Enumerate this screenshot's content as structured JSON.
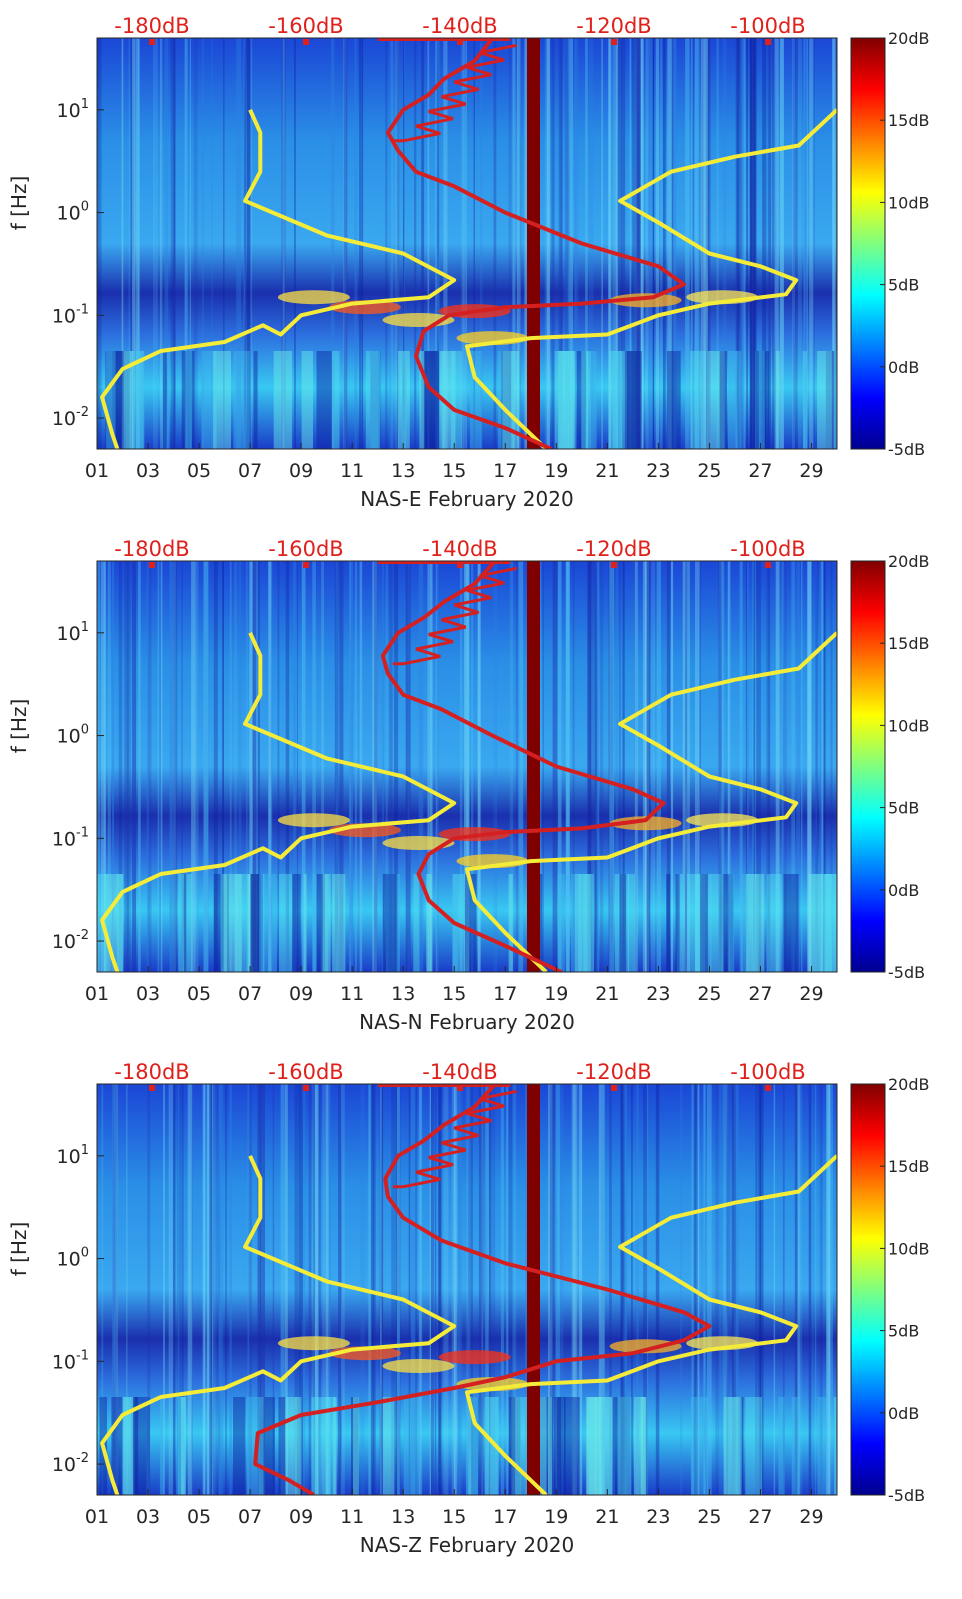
{
  "colors": {
    "accent_red": "#e0201b",
    "yellow_line": "#f5ec3a",
    "red_line": "#d42020",
    "bar": "#7f0000",
    "text": "#262626"
  },
  "chart_data": [
    {
      "type": "heatmap",
      "title": "",
      "xlabel": "NAS-E February 2020",
      "ylabel": "f [Hz]",
      "x_ticks": [
        "01",
        "03",
        "05",
        "07",
        "09",
        "11",
        "13",
        "15",
        "17",
        "19",
        "21",
        "23",
        "25",
        "27",
        "29"
      ],
      "y_ticks": [
        {
          "value": 0.01,
          "base": "10",
          "exp": "-2"
        },
        {
          "value": 0.1,
          "base": "10",
          "exp": "-1"
        },
        {
          "value": 1,
          "base": "10",
          "exp": "0"
        },
        {
          "value": 10,
          "base": "10",
          "exp": "1"
        }
      ],
      "top_axis_labels": [
        "-180dB",
        "-160dB",
        "-140dB",
        "-120dB",
        "-100dB"
      ],
      "colorbar": {
        "labels": [
          "20dB",
          "15dB",
          "10dB",
          "5dB",
          "0dB",
          "-5dB"
        ],
        "range_db": [
          -5,
          20
        ]
      },
      "xlim_days": [
        1,
        30
      ],
      "ylim_hz": [
        0.005,
        50
      ],
      "series": [
        {
          "name": "yellow-noise-model",
          "points": [
            [
              7.0,
              10
            ],
            [
              7.4,
              6
            ],
            [
              7.4,
              2.5
            ],
            [
              6.8,
              1.3
            ],
            [
              10,
              0.6
            ],
            [
              13,
              0.4
            ],
            [
              15,
              0.22
            ],
            [
              14,
              0.15
            ],
            [
              11,
              0.13
            ],
            [
              9,
              0.1
            ],
            [
              8.2,
              0.065
            ],
            [
              7.5,
              0.08
            ],
            [
              6,
              0.055
            ],
            [
              3.5,
              0.045
            ],
            [
              2,
              0.03
            ],
            [
              1.2,
              0.016
            ],
            [
              1.6,
              0.007
            ],
            [
              1.8,
              0.005
            ]
          ]
        },
        {
          "name": "yellow-noise-model-2",
          "points": [
            [
              18.6,
              0.005
            ],
            [
              17,
              0.012
            ],
            [
              15.8,
              0.025
            ],
            [
              15.5,
              0.05
            ],
            [
              18,
              0.06
            ],
            [
              21,
              0.065
            ],
            [
              23,
              0.1
            ],
            [
              25,
              0.13
            ],
            [
              28,
              0.16
            ],
            [
              28.4,
              0.22
            ],
            [
              27,
              0.3
            ],
            [
              25,
              0.4
            ],
            [
              23,
              0.8
            ],
            [
              21.5,
              1.3
            ],
            [
              23.5,
              2.5
            ],
            [
              26,
              3.5
            ],
            [
              28.5,
              4.5
            ],
            [
              30,
              10
            ]
          ]
        },
        {
          "name": "red-noise-psd",
          "points": [
            [
              18.8,
              0.005
            ],
            [
              17,
              0.008
            ],
            [
              15,
              0.012
            ],
            [
              14,
              0.02
            ],
            [
              13.5,
              0.04
            ],
            [
              13.8,
              0.07
            ],
            [
              14.8,
              0.1
            ],
            [
              17,
              0.12
            ],
            [
              20,
              0.13
            ],
            [
              22.8,
              0.15
            ],
            [
              24,
              0.2
            ],
            [
              23,
              0.3
            ],
            [
              20,
              0.5
            ],
            [
              17,
              1
            ],
            [
              15,
              1.8
            ],
            [
              13.5,
              2.5
            ],
            [
              12.8,
              4
            ],
            [
              12.4,
              6
            ],
            [
              13,
              10
            ],
            [
              14,
              14
            ],
            [
              14.6,
              20
            ],
            [
              15.8,
              30
            ],
            [
              16.5,
              50
            ]
          ]
        }
      ]
    },
    {
      "type": "heatmap",
      "title": "",
      "xlabel": "NAS-N February 2020",
      "ylabel": "f [Hz]",
      "x_ticks": [
        "01",
        "03",
        "05",
        "07",
        "09",
        "11",
        "13",
        "15",
        "17",
        "19",
        "21",
        "23",
        "25",
        "27",
        "29"
      ],
      "y_ticks": [
        {
          "value": 0.01,
          "base": "10",
          "exp": "-2"
        },
        {
          "value": 0.1,
          "base": "10",
          "exp": "-1"
        },
        {
          "value": 1,
          "base": "10",
          "exp": "0"
        },
        {
          "value": 10,
          "base": "10",
          "exp": "1"
        }
      ],
      "top_axis_labels": [
        "-180dB",
        "-160dB",
        "-140dB",
        "-120dB",
        "-100dB"
      ],
      "colorbar": {
        "labels": [
          "20dB",
          "15dB",
          "10dB",
          "5dB",
          "0dB",
          "-5dB"
        ],
        "range_db": [
          -5,
          20
        ]
      },
      "xlim_days": [
        1,
        30
      ],
      "ylim_hz": [
        0.005,
        50
      ],
      "series": [
        {
          "name": "yellow-noise-model",
          "points": [
            [
              7.0,
              10
            ],
            [
              7.4,
              6
            ],
            [
              7.4,
              2.5
            ],
            [
              6.8,
              1.3
            ],
            [
              10,
              0.6
            ],
            [
              13,
              0.4
            ],
            [
              15,
              0.22
            ],
            [
              14,
              0.15
            ],
            [
              11,
              0.13
            ],
            [
              9,
              0.1
            ],
            [
              8.2,
              0.065
            ],
            [
              7.5,
              0.08
            ],
            [
              6,
              0.055
            ],
            [
              3.5,
              0.045
            ],
            [
              2,
              0.03
            ],
            [
              1.2,
              0.016
            ],
            [
              1.6,
              0.007
            ],
            [
              1.8,
              0.005
            ]
          ]
        },
        {
          "name": "yellow-noise-model-2",
          "points": [
            [
              18.6,
              0.005
            ],
            [
              17,
              0.012
            ],
            [
              15.8,
              0.025
            ],
            [
              15.5,
              0.05
            ],
            [
              18,
              0.06
            ],
            [
              21,
              0.065
            ],
            [
              23,
              0.1
            ],
            [
              25,
              0.13
            ],
            [
              28,
              0.16
            ],
            [
              28.4,
              0.22
            ],
            [
              27,
              0.3
            ],
            [
              25,
              0.4
            ],
            [
              23,
              0.8
            ],
            [
              21.5,
              1.3
            ],
            [
              23.5,
              2.5
            ],
            [
              26,
              3.5
            ],
            [
              28.5,
              4.5
            ],
            [
              30,
              10
            ]
          ]
        },
        {
          "name": "red-noise-psd",
          "points": [
            [
              19.2,
              0.005
            ],
            [
              17,
              0.009
            ],
            [
              15,
              0.015
            ],
            [
              14,
              0.025
            ],
            [
              13.6,
              0.045
            ],
            [
              14,
              0.07
            ],
            [
              15,
              0.1
            ],
            [
              17,
              0.115
            ],
            [
              20,
              0.125
            ],
            [
              22.5,
              0.15
            ],
            [
              23.2,
              0.22
            ],
            [
              22,
              0.3
            ],
            [
              19,
              0.5
            ],
            [
              16.5,
              1
            ],
            [
              14.5,
              1.8
            ],
            [
              13,
              2.5
            ],
            [
              12.4,
              4
            ],
            [
              12.2,
              6
            ],
            [
              12.8,
              10
            ],
            [
              13.8,
              14
            ],
            [
              14.6,
              20
            ],
            [
              15.8,
              30
            ],
            [
              16.6,
              50
            ]
          ]
        }
      ]
    },
    {
      "type": "heatmap",
      "title": "",
      "xlabel": "NAS-Z February 2020",
      "ylabel": "f [Hz]",
      "x_ticks": [
        "01",
        "03",
        "05",
        "07",
        "09",
        "11",
        "13",
        "15",
        "17",
        "19",
        "21",
        "23",
        "25",
        "27",
        "29"
      ],
      "y_ticks": [
        {
          "value": 0.01,
          "base": "10",
          "exp": "-2"
        },
        {
          "value": 0.1,
          "base": "10",
          "exp": "-1"
        },
        {
          "value": 1,
          "base": "10",
          "exp": "0"
        },
        {
          "value": 10,
          "base": "10",
          "exp": "1"
        }
      ],
      "top_axis_labels": [
        "-180dB",
        "-160dB",
        "-140dB",
        "-120dB",
        "-100dB"
      ],
      "colorbar": {
        "labels": [
          "20dB",
          "15dB",
          "10dB",
          "5dB",
          "0dB",
          "-5dB"
        ],
        "range_db": [
          -5,
          20
        ]
      },
      "xlim_days": [
        1,
        30
      ],
      "ylim_hz": [
        0.005,
        50
      ],
      "series": [
        {
          "name": "yellow-noise-model",
          "points": [
            [
              7.0,
              10
            ],
            [
              7.4,
              6
            ],
            [
              7.4,
              2.5
            ],
            [
              6.8,
              1.3
            ],
            [
              10,
              0.6
            ],
            [
              13,
              0.4
            ],
            [
              15,
              0.22
            ],
            [
              14,
              0.15
            ],
            [
              11,
              0.13
            ],
            [
              9,
              0.1
            ],
            [
              8.2,
              0.065
            ],
            [
              7.5,
              0.08
            ],
            [
              6,
              0.055
            ],
            [
              3.5,
              0.045
            ],
            [
              2,
              0.03
            ],
            [
              1.2,
              0.016
            ],
            [
              1.6,
              0.007
            ],
            [
              1.8,
              0.005
            ]
          ]
        },
        {
          "name": "yellow-noise-model-2",
          "points": [
            [
              18.6,
              0.005
            ],
            [
              17,
              0.012
            ],
            [
              15.8,
              0.025
            ],
            [
              15.5,
              0.05
            ],
            [
              18,
              0.06
            ],
            [
              21,
              0.065
            ],
            [
              23,
              0.1
            ],
            [
              25,
              0.13
            ],
            [
              28,
              0.16
            ],
            [
              28.4,
              0.22
            ],
            [
              27,
              0.3
            ],
            [
              25,
              0.4
            ],
            [
              23,
              0.8
            ],
            [
              21.5,
              1.3
            ],
            [
              23.5,
              2.5
            ],
            [
              26,
              3.5
            ],
            [
              28.5,
              4.5
            ],
            [
              30,
              10
            ]
          ]
        },
        {
          "name": "red-noise-psd",
          "points": [
            [
              9.5,
              0.005
            ],
            [
              8.5,
              0.007
            ],
            [
              7.2,
              0.01
            ],
            [
              7.3,
              0.02
            ],
            [
              9,
              0.03
            ],
            [
              12,
              0.04
            ],
            [
              15,
              0.055
            ],
            [
              17,
              0.07
            ],
            [
              19,
              0.1
            ],
            [
              22,
              0.12
            ],
            [
              24,
              0.16
            ],
            [
              25,
              0.22
            ],
            [
              24,
              0.3
            ],
            [
              21,
              0.5
            ],
            [
              17,
              0.9
            ],
            [
              14.5,
              1.5
            ],
            [
              13,
              2.5
            ],
            [
              12.4,
              4
            ],
            [
              12.3,
              6
            ],
            [
              12.8,
              10
            ],
            [
              13.8,
              14
            ],
            [
              14.6,
              20
            ],
            [
              15.8,
              30
            ],
            [
              16.6,
              50
            ]
          ]
        }
      ]
    }
  ]
}
